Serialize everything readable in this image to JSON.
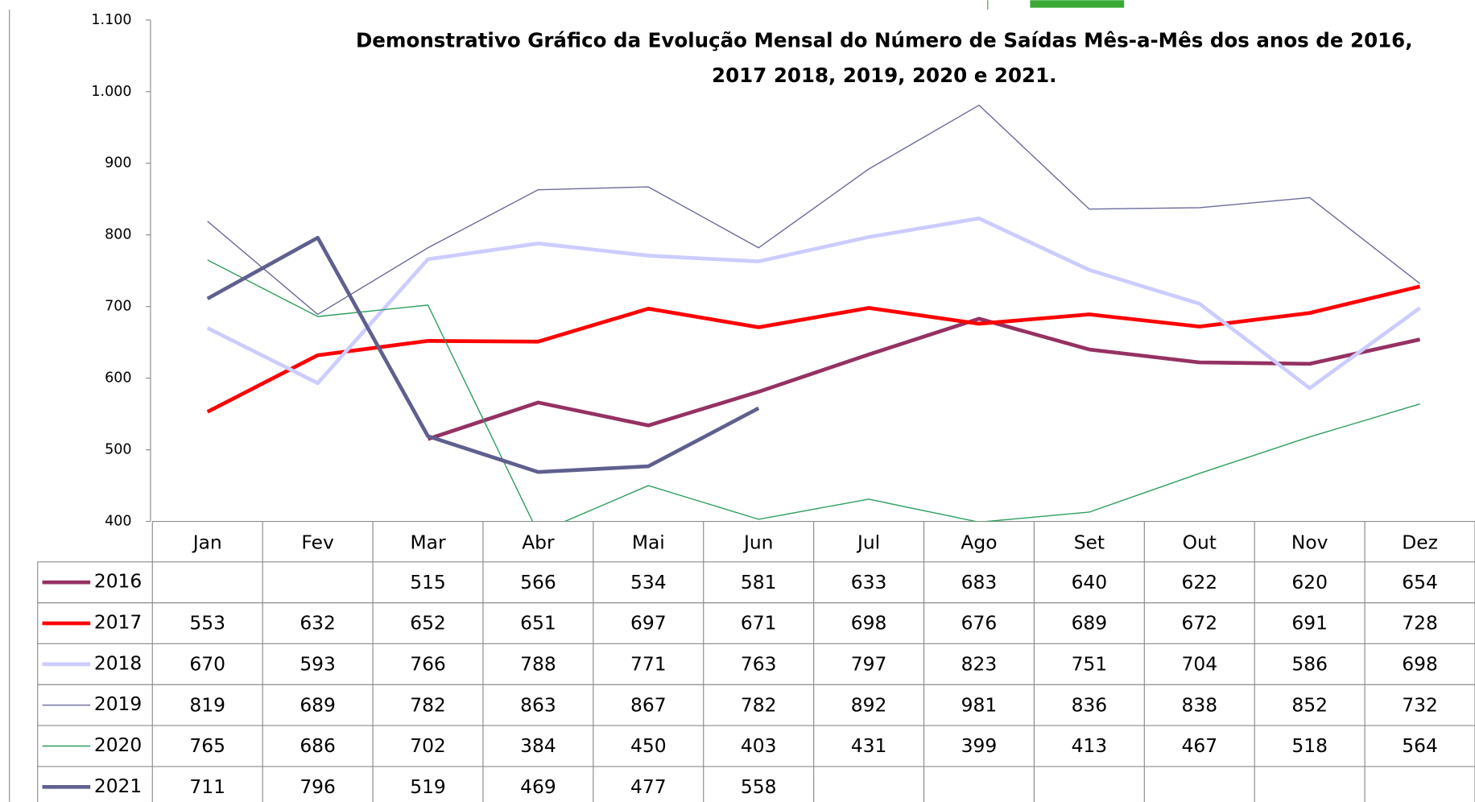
{
  "chart_data": {
    "type": "line",
    "title": [
      "Demonstrativo Gráfico da Evolução Mensal do Número de Saídas Mês-a-Mês dos anos de  2016,",
      "2017 2018, 2019, 2020 e 2021."
    ],
    "categories": [
      "Jan",
      "Fev",
      "Mar",
      "Abr",
      "Mai",
      "Jun",
      "Jul",
      "Ago",
      "Set",
      "Out",
      "Nov",
      "Dez"
    ],
    "ylim": [
      400,
      1100
    ],
    "yticks": [
      400,
      500,
      600,
      700,
      800,
      900,
      {
        "value": 1000,
        "label": "1.000"
      },
      {
        "value": 1100,
        "label": "1.100"
      }
    ],
    "grid": false,
    "series": [
      {
        "name": "2016",
        "color": "#953163",
        "width": 4,
        "values": [
          null,
          null,
          515,
          566,
          534,
          581,
          633,
          683,
          640,
          622,
          620,
          654
        ]
      },
      {
        "name": "2017",
        "color": "#ff0000",
        "width": 4,
        "values": [
          553,
          632,
          652,
          651,
          697,
          671,
          698,
          676,
          689,
          672,
          691,
          728
        ]
      },
      {
        "name": "2018",
        "color": "#ccccff",
        "width": 4,
        "values": [
          670,
          593,
          766,
          788,
          771,
          763,
          797,
          823,
          751,
          704,
          586,
          698
        ]
      },
      {
        "name": "2019",
        "color": "#6b6b9b",
        "width": 1.2,
        "values": [
          819,
          689,
          782,
          863,
          867,
          782,
          892,
          981,
          836,
          838,
          852,
          732
        ]
      },
      {
        "name": "2020",
        "color": "#2e9e5e",
        "width": 1.2,
        "values": [
          765,
          686,
          702,
          384,
          450,
          403,
          431,
          399,
          413,
          467,
          518,
          564
        ]
      },
      {
        "name": "2021",
        "color": "#5f5f8f",
        "width": 4,
        "values": [
          711,
          796,
          519,
          469,
          477,
          558,
          null,
          null,
          null,
          null,
          null,
          null
        ]
      }
    ]
  }
}
